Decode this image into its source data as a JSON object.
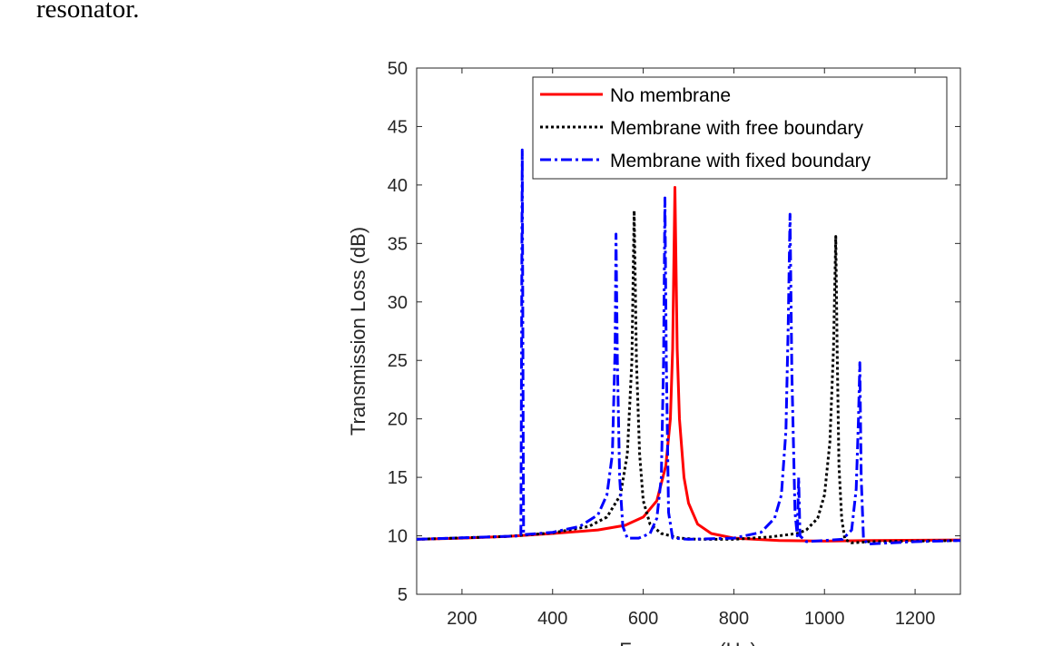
{
  "document": {
    "text_above": "resonator."
  },
  "chart_data": {
    "type": "line",
    "title": "",
    "xlabel": "Frequency (Hz)",
    "ylabel": "Transmission Loss (dB)",
    "xlim": [
      100,
      1300
    ],
    "ylim": [
      5,
      50
    ],
    "xticks": [
      200,
      400,
      600,
      800,
      1000,
      1200
    ],
    "yticks": [
      5,
      10,
      15,
      20,
      25,
      30,
      35,
      40,
      45,
      50
    ],
    "grid": false,
    "legend_position": "top-right",
    "series": [
      {
        "name": "No membrane",
        "color": "#ff0000",
        "style": "solid",
        "points": [
          [
            100,
            9.7
          ],
          [
            200,
            9.8
          ],
          [
            300,
            9.95
          ],
          [
            400,
            10.2
          ],
          [
            500,
            10.5
          ],
          [
            560,
            10.9
          ],
          [
            600,
            11.6
          ],
          [
            630,
            13
          ],
          [
            650,
            16
          ],
          [
            660,
            20
          ],
          [
            665,
            26
          ],
          [
            670,
            39.8
          ],
          [
            675,
            26
          ],
          [
            680,
            20
          ],
          [
            690,
            15
          ],
          [
            700,
            12.8
          ],
          [
            720,
            11
          ],
          [
            750,
            10.2
          ],
          [
            800,
            9.8
          ],
          [
            900,
            9.6
          ],
          [
            1000,
            9.55
          ],
          [
            1100,
            9.6
          ],
          [
            1300,
            9.65
          ]
        ]
      },
      {
        "name": "Membrane with free boundary",
        "color": "#000000",
        "style": "dotted",
        "points": [
          [
            100,
            9.7
          ],
          [
            300,
            9.95
          ],
          [
            400,
            10.25
          ],
          [
            480,
            10.8
          ],
          [
            520,
            11.6
          ],
          [
            550,
            13.5
          ],
          [
            565,
            17
          ],
          [
            575,
            25
          ],
          [
            580,
            37.8
          ],
          [
            585,
            25
          ],
          [
            592,
            17
          ],
          [
            600,
            13
          ],
          [
            615,
            11
          ],
          [
            640,
            10.2
          ],
          [
            680,
            9.8
          ],
          [
            720,
            9.7
          ],
          [
            800,
            9.7
          ],
          [
            880,
            9.9
          ],
          [
            940,
            10.2
          ],
          [
            960,
            10.5
          ],
          [
            985,
            11.5
          ],
          [
            1000,
            13.5
          ],
          [
            1012,
            18
          ],
          [
            1020,
            26
          ],
          [
            1025,
            35.6
          ],
          [
            1028,
            26
          ],
          [
            1032,
            16
          ],
          [
            1038,
            11.5
          ],
          [
            1045,
            9.7
          ],
          [
            1060,
            9.4
          ],
          [
            1100,
            9.5
          ],
          [
            1300,
            9.6
          ]
        ]
      },
      {
        "name": "Membrane with fixed boundary",
        "color": "#0000ff",
        "style": "dashdot",
        "points": [
          [
            100,
            9.7
          ],
          [
            330,
            10
          ],
          [
            331,
            20
          ],
          [
            333,
            43
          ],
          [
            335,
            20
          ],
          [
            336,
            10.1
          ],
          [
            400,
            10.3
          ],
          [
            460,
            10.8
          ],
          [
            500,
            11.8
          ],
          [
            520,
            13.5
          ],
          [
            532,
            17
          ],
          [
            538,
            26
          ],
          [
            540,
            35.8
          ],
          [
            543,
            25
          ],
          [
            548,
            15
          ],
          [
            555,
            10.8
          ],
          [
            565,
            9.8
          ],
          [
            590,
            9.8
          ],
          [
            615,
            10.2
          ],
          [
            630,
            11.5
          ],
          [
            640,
            15
          ],
          [
            645,
            25
          ],
          [
            648,
            38.9
          ],
          [
            651,
            25
          ],
          [
            656,
            12
          ],
          [
            665,
            9.8
          ],
          [
            700,
            9.7
          ],
          [
            800,
            9.8
          ],
          [
            860,
            10.3
          ],
          [
            890,
            11.5
          ],
          [
            905,
            13.5
          ],
          [
            915,
            19
          ],
          [
            920,
            28
          ],
          [
            924,
            37.5
          ],
          [
            928,
            24
          ],
          [
            935,
            12
          ],
          [
            940,
            10
          ],
          [
            943,
            15
          ],
          [
            946,
            10
          ],
          [
            960,
            9.5
          ],
          [
            1040,
            9.7
          ],
          [
            1060,
            10.5
          ],
          [
            1070,
            14
          ],
          [
            1075,
            20
          ],
          [
            1078,
            24.8
          ],
          [
            1081,
            15
          ],
          [
            1086,
            9.8
          ],
          [
            1095,
            9.3
          ],
          [
            1200,
            9.5
          ],
          [
            1300,
            9.6
          ]
        ]
      }
    ]
  }
}
